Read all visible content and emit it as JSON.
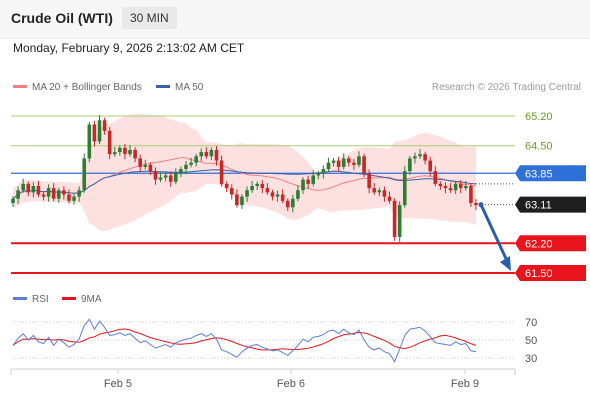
{
  "header": {
    "instrument": "Crude Oil (WTI)",
    "timeframe": "30 MIN",
    "datetime": "Monday, February 9, 2026 2:13:02 AM CET"
  },
  "colors": {
    "bull": "#2e7d32",
    "bear": "#c62828",
    "ma20": "#f08080",
    "band_fill": "#fde0e0",
    "ma50": "#3a5fa8",
    "support": "#e8141c",
    "resistance": "#a9cf6f",
    "pivot": "#2f6fd8",
    "arrow": "#2a5fa8",
    "rsi": "#5b7fd4",
    "rsi_ma": "#e8141c"
  },
  "chart_data": [
    {
      "type": "line",
      "title": "",
      "legend": [
        {
          "name": "MA 20 + Bollinger Bands",
          "color": "#f08080"
        },
        {
          "name": "MA 50",
          "color": "#3a5fa8"
        }
      ],
      "credit": "Research © 2026 Trading Central",
      "x_ticks": [
        "Feb 5",
        "Feb 6",
        "Feb 9"
      ],
      "ylim": [
        61.3,
        65.6
      ],
      "levels": [
        {
          "label": "65.20",
          "value": 65.2,
          "kind": "resistance"
        },
        {
          "label": "64.50",
          "value": 64.5,
          "kind": "resistance"
        },
        {
          "label": "63.85",
          "value": 63.85,
          "kind": "pivot"
        },
        {
          "label": "63.11",
          "value": 63.11,
          "kind": "last"
        },
        {
          "label": "62.20",
          "value": 62.2,
          "kind": "support"
        },
        {
          "label": "61.50",
          "value": 61.5,
          "kind": "support"
        }
      ],
      "forecast": {
        "from": 63.11,
        "to": 61.5
      },
      "series": [
        {
          "name": "Close",
          "values": [
            63.25,
            63.45,
            63.6,
            63.4,
            63.55,
            63.35,
            63.3,
            63.5,
            63.25,
            63.45,
            63.35,
            63.2,
            63.3,
            63.45,
            64.2,
            65.0,
            64.6,
            65.1,
            64.85,
            64.3,
            64.35,
            64.45,
            64.3,
            64.4,
            64.2,
            64.0,
            64.05,
            63.9,
            63.7,
            63.75,
            63.8,
            63.65,
            63.85,
            63.95,
            64.05,
            64.1,
            64.25,
            64.35,
            64.25,
            64.4,
            64.15,
            63.6,
            63.5,
            63.35,
            63.1,
            63.3,
            63.45,
            63.55,
            63.6,
            63.5,
            63.4,
            63.3,
            63.35,
            63.2,
            63.05,
            63.25,
            63.45,
            63.7,
            63.6,
            63.8,
            63.85,
            63.95,
            64.1,
            64.15,
            64.0,
            64.2,
            64.1,
            64.05,
            64.25,
            63.85,
            63.5,
            63.4,
            63.45,
            63.3,
            63.2,
            62.35,
            63.1,
            63.9,
            64.2,
            64.25,
            64.3,
            64.15,
            63.9,
            63.6,
            63.55,
            63.5,
            63.45,
            63.6,
            63.5,
            63.55,
            63.15,
            63.1
          ]
        },
        {
          "name": "RSI",
          "values": [
            44,
            52,
            57,
            50,
            55,
            48,
            46,
            53,
            44,
            51,
            47,
            42,
            45,
            51,
            66,
            73,
            62,
            71,
            64,
            55,
            56,
            58,
            55,
            57,
            52,
            47,
            49,
            45,
            41,
            43,
            45,
            42,
            47,
            49,
            51,
            52,
            55,
            57,
            54,
            57,
            51,
            39,
            37,
            34,
            31,
            37,
            41,
            44,
            45,
            42,
            40,
            38,
            39,
            36,
            33,
            38,
            44,
            51,
            48,
            53,
            54,
            56,
            60,
            61,
            57,
            62,
            58,
            56,
            61,
            50,
            42,
            39,
            41,
            37,
            35,
            26,
            40,
            55,
            62,
            63,
            64,
            60,
            54,
            47,
            46,
            45,
            44,
            48,
            45,
            46,
            38,
            37
          ]
        }
      ]
    },
    {
      "type": "line",
      "title": "",
      "legend": [
        {
          "name": "RSI",
          "color": "#5b7fd4"
        },
        {
          "name": "9MA",
          "color": "#e8141c"
        }
      ],
      "y_ticks": [
        70,
        50,
        30
      ],
      "ylim": [
        22,
        80
      ]
    }
  ]
}
